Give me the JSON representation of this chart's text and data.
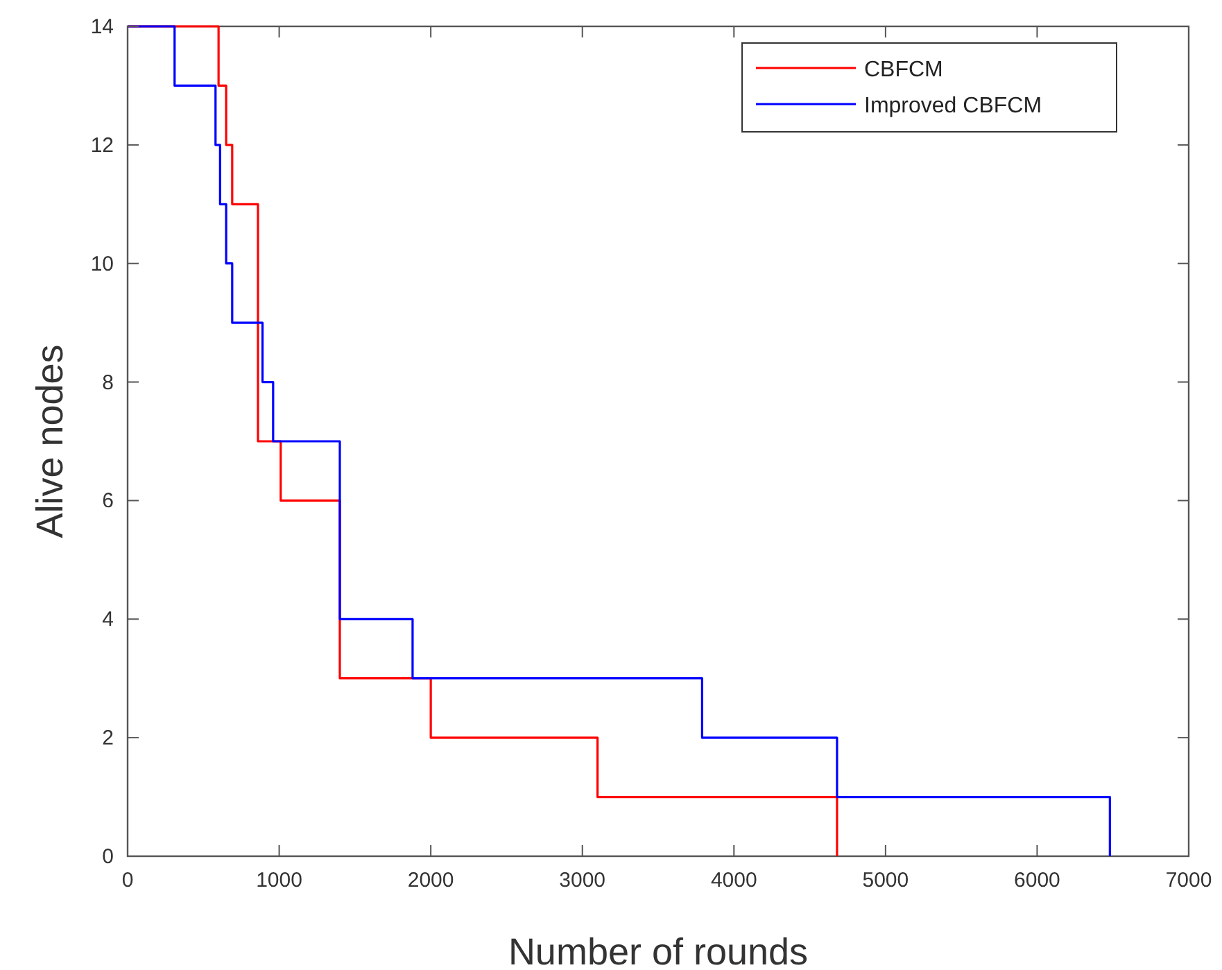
{
  "chart_data": {
    "type": "step",
    "xlabel": "Number of rounds",
    "ylabel": "Alive nodes",
    "series": [
      {
        "name": "CBFCM",
        "color": "#ff0000",
        "x": [
          0,
          600,
          650,
          690,
          860,
          1010,
          1400,
          2000,
          3100,
          4680
        ],
        "values": [
          14,
          13,
          12,
          11,
          7,
          6,
          3,
          2,
          1,
          0
        ]
      },
      {
        "name": "Improved CBFCM",
        "color": "#0000ff",
        "x": [
          0,
          310,
          580,
          610,
          650,
          690,
          890,
          960,
          1400,
          1880,
          3790,
          4680,
          6480
        ],
        "values": [
          14,
          13,
          12,
          11,
          10,
          9,
          8,
          7,
          4,
          3,
          2,
          1,
          0
        ]
      }
    ],
    "xlim": [
      0,
      7000
    ],
    "xticks": [
      0,
      1000,
      2000,
      3000,
      4000,
      5000,
      6000,
      7000
    ],
    "ylim": [
      0,
      14
    ],
    "yticks": [
      0,
      2,
      4,
      6,
      8,
      10,
      12,
      14
    ],
    "legend": "top right",
    "grid": false
  }
}
